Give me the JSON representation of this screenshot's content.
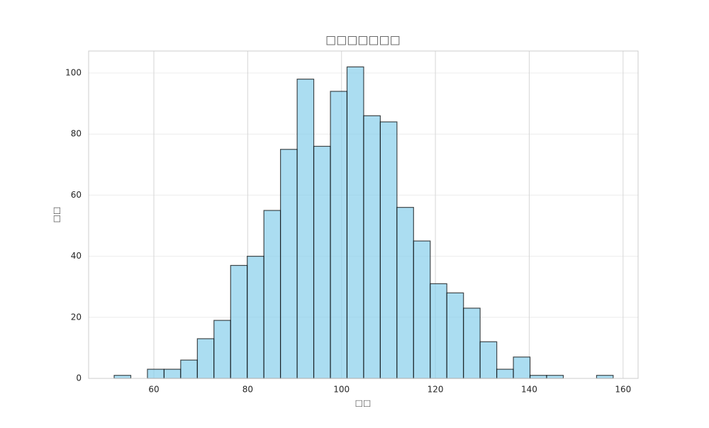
{
  "chart_data": {
    "type": "histogram",
    "title": "□□□□□□□",
    "x_label": "□□",
    "y_label": "□□",
    "bins": [
      51.54,
      55.09,
      58.63,
      62.18,
      65.72,
      69.27,
      72.81,
      76.36,
      79.9,
      83.45,
      86.99,
      90.54,
      94.08,
      97.63,
      101.17,
      104.72,
      108.26,
      111.81,
      115.35,
      118.9,
      122.44,
      125.99,
      129.53,
      133.08,
      136.62,
      140.17,
      143.71,
      147.26,
      150.8,
      154.35,
      157.89
    ],
    "values": [
      1,
      0,
      3,
      3,
      6,
      13,
      19,
      37,
      40,
      55,
      75,
      98,
      76,
      94,
      102,
      86,
      84,
      56,
      45,
      31,
      28,
      23,
      12,
      3,
      7,
      1,
      1,
      0,
      0,
      1
    ],
    "color": "#87ceeb",
    "edge_color": "#000000",
    "xlim": [
      46.1,
      163.2
    ],
    "xticks": [
      60,
      80,
      100,
      120,
      140,
      160
    ],
    "ylim": [
      0,
      107.2
    ],
    "yticks": [
      0,
      20,
      40,
      60,
      80,
      100
    ],
    "grid": true
  }
}
